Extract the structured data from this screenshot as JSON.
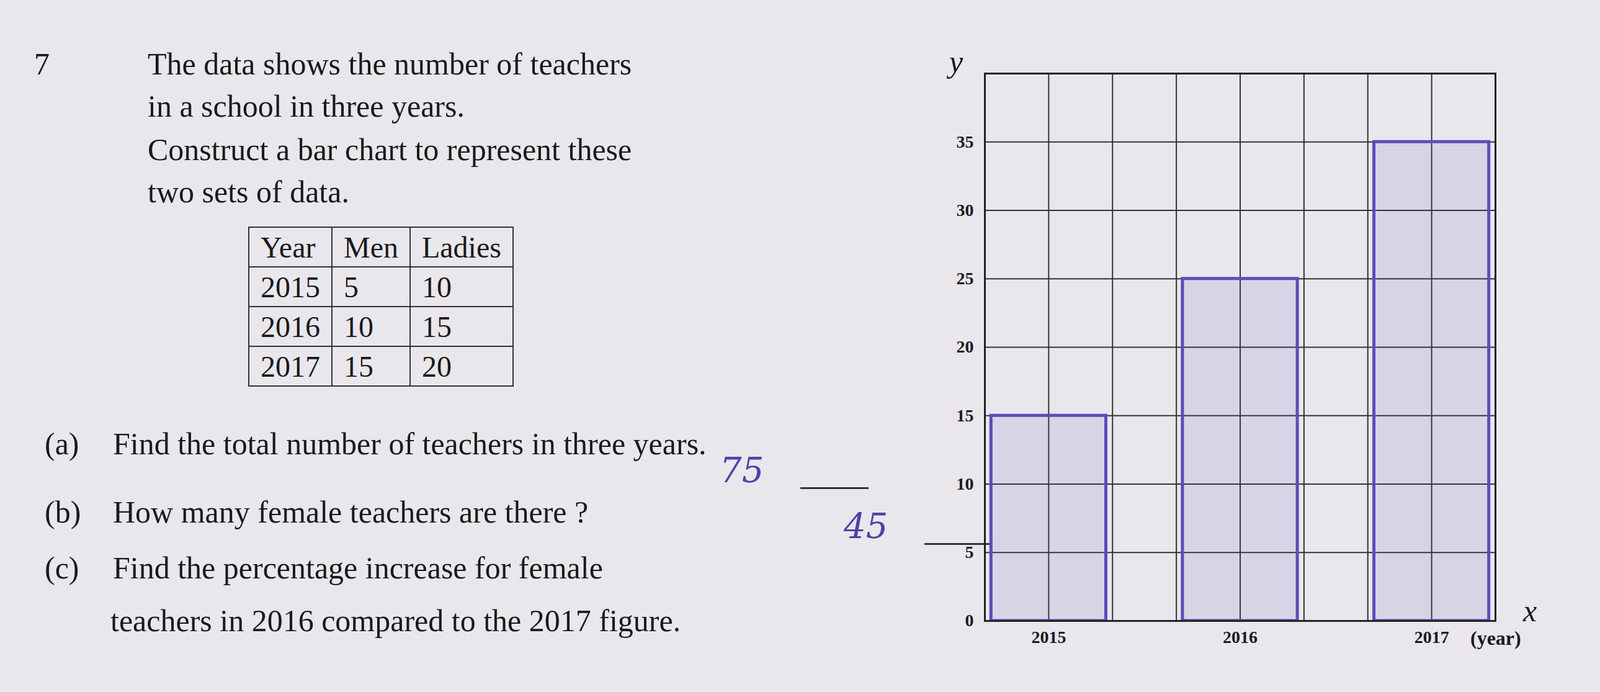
{
  "question": {
    "number": "7",
    "text": [
      "The data shows the number of teachers",
      "in a school in three years.",
      "Construct a bar chart to represent these",
      "two sets of data."
    ]
  },
  "table": {
    "header": [
      "Year",
      "Men",
      "Ladies"
    ],
    "rows": [
      [
        "2015",
        5,
        10
      ],
      [
        "2016",
        10,
        15
      ],
      [
        "2017",
        15,
        20
      ]
    ]
  },
  "parts": [
    {
      "label": "(a)",
      "text": [
        "Find the total number of teachers in three years."
      ],
      "answer": "75"
    },
    {
      "label": "(b)",
      "text": [
        "How many female teachers are there ?"
      ],
      "answer": "45"
    },
    {
      "label": "(c)",
      "text": [
        "Find the percentage increase for female",
        "teachers in 2016 compared to the 2017 figure."
      ]
    }
  ],
  "chart_data": {
    "type": "bar",
    "categories": [
      "2015",
      "2016",
      "2017"
    ],
    "values": [
      15,
      25,
      35
    ],
    "color": "#5b4db8",
    "x_label": "x",
    "y_label": "y",
    "x_note": "(year)",
    "ylim": [
      0,
      40
    ],
    "yticks": [
      0,
      5,
      10,
      15,
      20,
      25,
      30,
      35
    ],
    "grid": true
  }
}
